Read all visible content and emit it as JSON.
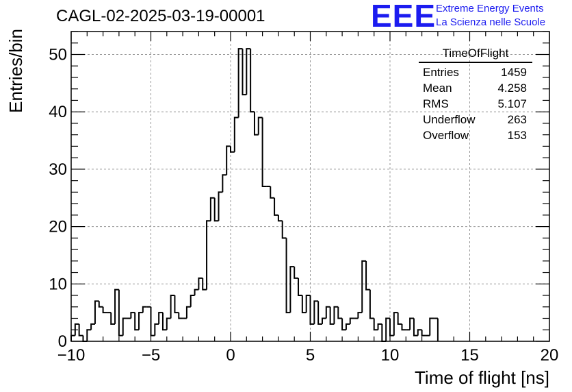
{
  "title": "CAGL-02-2025-03-19-00001",
  "logo": {
    "mark": "EEE",
    "line1": "Extreme Energy Events",
    "line2": "La Scienza nelle Scuole",
    "color": "#1c1cf0"
  },
  "stats_box": {
    "title": "TimeOfFlight",
    "rows": [
      {
        "label": "Entries",
        "value": "1459"
      },
      {
        "label": "Mean",
        "value": "4.258"
      },
      {
        "label": "RMS",
        "value": "5.107"
      },
      {
        "label": "Underflow",
        "value": "263"
      },
      {
        "label": "Overflow",
        "value": "153"
      }
    ]
  },
  "chart_data": {
    "type": "bar",
    "style": "histogram-step",
    "xlabel": "Time of flight [ns]",
    "ylabel": "Entries/bin",
    "xlim": [
      -10,
      20
    ],
    "ylim": [
      0,
      54
    ],
    "bin_width": 0.25,
    "x_ticks": [
      -10,
      -5,
      0,
      5,
      10,
      15,
      20
    ],
    "x_tick_labels": [
      "−10",
      "−5",
      "0",
      "5",
      "10",
      "15",
      "20"
    ],
    "y_ticks": [
      0,
      10,
      20,
      30,
      40,
      50
    ],
    "y_tick_labels": [
      "0",
      "10",
      "20",
      "30",
      "40",
      "50"
    ],
    "grid": true,
    "line_color": "#000000",
    "values": [
      1,
      3,
      1,
      0,
      2,
      3,
      7,
      6,
      5,
      5,
      3,
      9,
      1,
      4,
      4,
      5,
      2,
      5,
      6,
      6,
      1,
      3,
      5,
      2,
      4,
      8,
      5,
      4,
      4,
      6,
      8,
      9,
      11,
      9,
      21,
      25,
      21,
      26,
      29,
      34,
      33,
      39,
      51,
      43,
      51,
      40,
      36,
      39,
      27,
      27,
      25,
      22,
      21,
      18,
      5,
      13,
      11,
      8,
      5,
      8,
      3,
      7,
      3,
      4,
      6,
      3,
      6,
      4,
      2,
      3,
      4,
      4,
      5,
      14,
      9,
      4,
      2,
      3,
      0,
      4,
      1,
      5,
      3,
      2,
      2,
      4,
      1,
      2,
      1,
      1,
      4,
      4
    ]
  }
}
